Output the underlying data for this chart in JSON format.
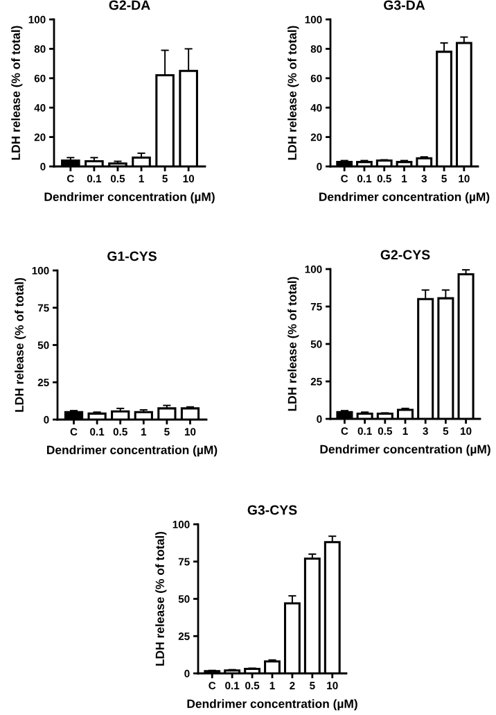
{
  "chart_data": [
    {
      "type": "bar",
      "title": "G2-DA",
      "xlabel": "Dendrimer concentration (µM)",
      "ylabel": "LDH release (% of total)",
      "categories": [
        "C",
        "0.1",
        "0.5",
        "1",
        "5",
        "10"
      ],
      "values": [
        4,
        3.5,
        2,
        6,
        62,
        65
      ],
      "errors": [
        [
          4,
          6
        ],
        [
          3.5,
          6
        ],
        [
          2,
          3.5
        ],
        [
          6,
          9
        ],
        [
          62,
          79
        ],
        [
          65,
          80
        ]
      ],
      "colors": [
        "#000000",
        "#ffffff",
        "#ffffff",
        "#ffffff",
        "#ffffff",
        "#ffffff"
      ],
      "ylim": [
        0,
        100
      ],
      "yticks": [
        0,
        20,
        40,
        60,
        80,
        100
      ]
    },
    {
      "type": "bar",
      "title": "G3-DA",
      "xlabel": "Dendrimer concentration (µM)",
      "ylabel": "LDH release (% of total)",
      "categories": [
        "C",
        "0.1",
        "0.5",
        "1",
        "3",
        "5",
        "10"
      ],
      "values": [
        3,
        3,
        4,
        3,
        5.5,
        78,
        84
      ],
      "errors": [
        [
          3,
          4
        ],
        [
          3,
          4
        ],
        [
          4,
          4.5
        ],
        [
          3,
          4
        ],
        [
          5.5,
          6.5
        ],
        [
          78,
          84
        ],
        [
          84,
          88
        ]
      ],
      "colors": [
        "#000000",
        "#ffffff",
        "#ffffff",
        "#ffffff",
        "#ffffff",
        "#ffffff",
        "#ffffff"
      ],
      "ylim": [
        0,
        100
      ],
      "yticks": [
        0,
        20,
        40,
        60,
        80,
        100
      ]
    },
    {
      "type": "bar",
      "title": "G1-CYS",
      "xlabel": "Dendrimer concentration (µM)",
      "ylabel": "LDH release (% of total)",
      "categories": [
        "C",
        "0.1",
        "0.5",
        "1",
        "5",
        "10"
      ],
      "values": [
        5,
        4,
        5.5,
        5,
        7.5,
        7.5
      ],
      "errors": [
        [
          5,
          6
        ],
        [
          4,
          5
        ],
        [
          5.5,
          7.5
        ],
        [
          5,
          6.5
        ],
        [
          7.5,
          9.5
        ],
        [
          7.5,
          8.5
        ]
      ],
      "colors": [
        "#000000",
        "#ffffff",
        "#ffffff",
        "#ffffff",
        "#ffffff",
        "#ffffff"
      ],
      "ylim": [
        0,
        100
      ],
      "yticks": [
        0,
        25,
        50,
        75,
        100
      ]
    },
    {
      "type": "bar",
      "title": "G2-CYS",
      "xlabel": "Dendrimer concentration (µM)",
      "ylabel": "LDH release (% of total)",
      "categories": [
        "C",
        "0.1",
        "0.5",
        "1",
        "3",
        "5",
        "10"
      ],
      "values": [
        4.5,
        3.5,
        3.5,
        6,
        80,
        80.5,
        96.5
      ],
      "errors": [
        [
          4.5,
          5.5
        ],
        [
          3.5,
          4.5
        ],
        [
          3.5,
          4
        ],
        [
          6,
          7
        ],
        [
          80,
          86
        ],
        [
          80.5,
          86
        ],
        [
          96.5,
          99.5
        ]
      ],
      "colors": [
        "#000000",
        "#ffffff",
        "#ffffff",
        "#ffffff",
        "#ffffff",
        "#ffffff",
        "#ffffff"
      ],
      "ylim": [
        0,
        100
      ],
      "yticks": [
        0,
        25,
        50,
        75,
        100
      ]
    },
    {
      "type": "bar",
      "title": "G3-CYS",
      "xlabel": "Dendrimer concentration (µM)",
      "ylabel": "LDH release (% of total)",
      "categories": [
        "C",
        "0.1",
        "0.5",
        "1",
        "2",
        "5",
        "10"
      ],
      "values": [
        1.5,
        2,
        3,
        8,
        47,
        77,
        88
      ],
      "errors": [
        [
          1.5,
          2
        ],
        [
          2,
          2.5
        ],
        [
          3,
          3.5
        ],
        [
          8,
          9
        ],
        [
          47,
          52
        ],
        [
          77,
          80
        ],
        [
          88,
          92
        ]
      ],
      "colors": [
        "#000000",
        "#ffffff",
        "#ffffff",
        "#ffffff",
        "#ffffff",
        "#ffffff",
        "#ffffff"
      ],
      "ylim": [
        0,
        100
      ],
      "yticks": [
        0,
        25,
        50,
        75,
        100
      ]
    }
  ]
}
